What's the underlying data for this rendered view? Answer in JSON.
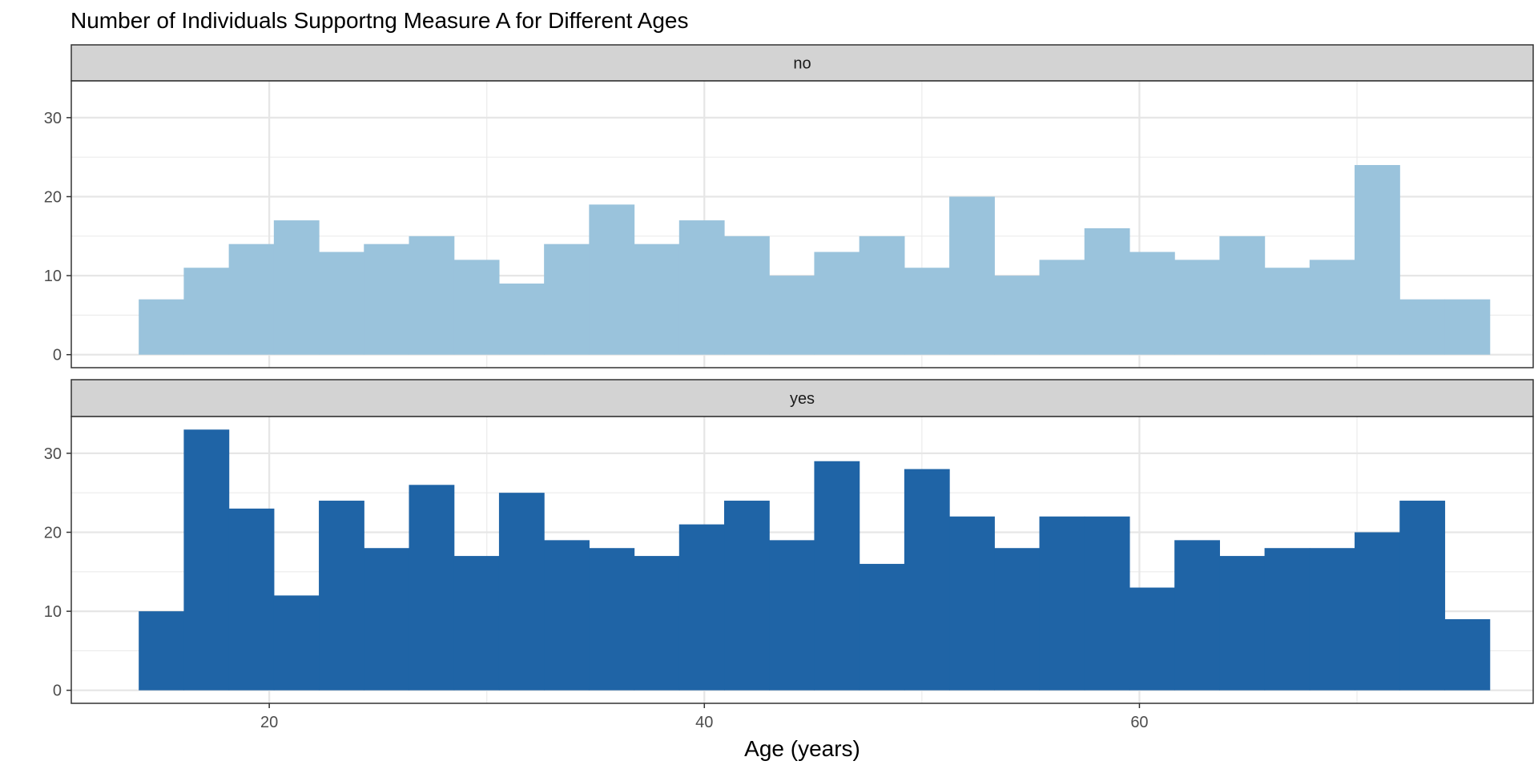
{
  "chart_data": {
    "type": "bar",
    "title": "Number of Individuals Supportng Measure A for Different Ages",
    "xlabel": "Age (years)",
    "ylabel": "",
    "x_ticks": [
      20,
      40,
      60
    ],
    "y_ticks": [
      0,
      10,
      20,
      30
    ],
    "xlim": [
      10.9,
      78.1
    ],
    "ylim": [
      -1.65,
      34.65
    ],
    "grid": true,
    "bin_edges": [
      14,
      16.07,
      18.14,
      20.21,
      22.28,
      24.35,
      26.42,
      28.49,
      30.56,
      32.63,
      34.7,
      36.77,
      38.84,
      40.91,
      42.98,
      45.05,
      47.12,
      49.19,
      51.26,
      53.33,
      55.4,
      57.47,
      59.54,
      61.61,
      63.68,
      65.75,
      67.82,
      69.89,
      71.96,
      74.03,
      76.1
    ],
    "series": [
      {
        "name": "no",
        "color": "#9ac3dc",
        "values": [
          7,
          11,
          14,
          17,
          13,
          14,
          15,
          12,
          9,
          14,
          19,
          14,
          17,
          15,
          10,
          13,
          15,
          11,
          20,
          10,
          12,
          16,
          13,
          12,
          15,
          11,
          12,
          24,
          7,
          7
        ]
      },
      {
        "name": "yes",
        "color": "#1f64a6",
        "values": [
          10,
          33,
          23,
          12,
          24,
          18,
          26,
          17,
          25,
          19,
          18,
          17,
          21,
          24,
          19,
          29,
          16,
          28,
          22,
          18,
          22,
          22,
          13,
          19,
          17,
          18,
          18,
          20,
          24,
          9
        ]
      }
    ]
  }
}
